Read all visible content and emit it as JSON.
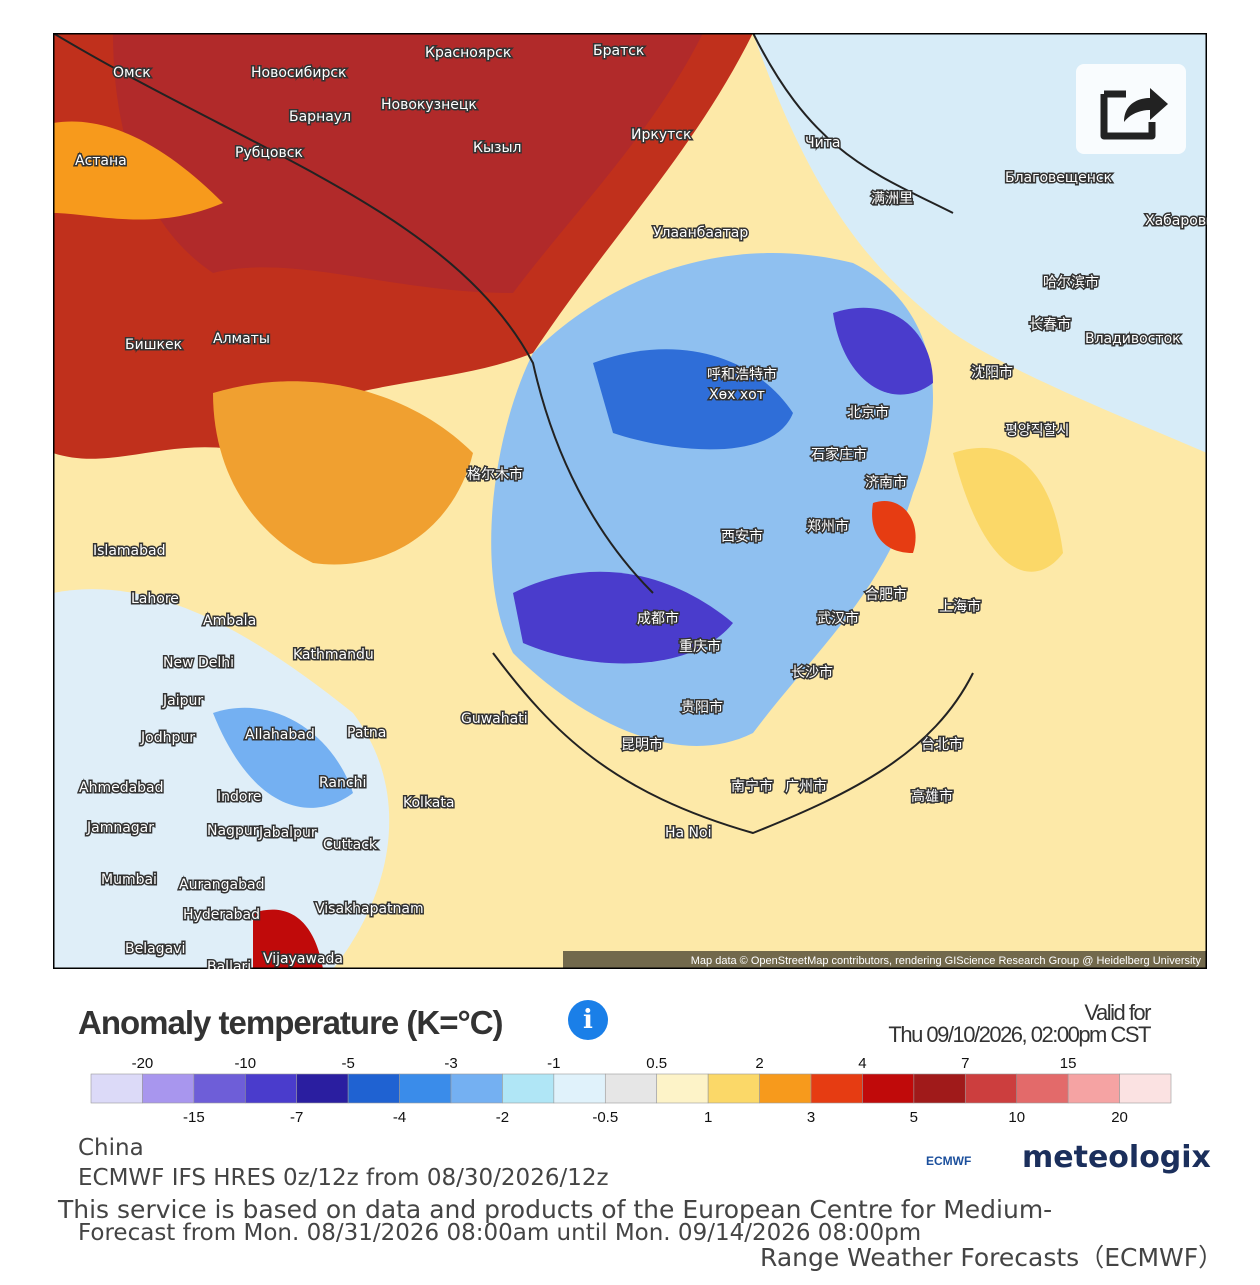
{
  "map": {
    "attribution": "Map data © OpenStreetMap contributors, rendering GIScience Research Group @ Heidelberg University",
    "labels": [
      "Омск",
      "Новосибирск",
      "Красноярск",
      "Братск",
      "Барнаул",
      "Новокузнецк",
      "Астана",
      "Рубцовск",
      "Кызыл",
      "Иркутск",
      "Чита",
      "Улаанбаатар",
      "Благовещенск",
      "Хабаровск",
      "Бишкек",
      "Алматы",
      "Владивосток",
      "Islamabad",
      "Lahore",
      "Ambala",
      "New Delhi",
      "Kathmandu",
      "Jaipur",
      "Jodhpur",
      "Allahabad",
      "Patna",
      "Guwahati",
      "Ranchi",
      "Kolkata",
      "Ahmedabad",
      "Indore",
      "Jabalpur",
      "Nagpur",
      "Jamnagar",
      "Cuttack",
      "Mumbai",
      "Aurangabad",
      "Hyderabad",
      "Visakhapatnam",
      "Belagavi",
      "Ballari",
      "Vijayawada",
      "Ha Noi",
      "满洲里",
      "哈尔滨市",
      "长春市",
      "沈阳市",
      "呼和浩特市",
      "Хөх хот",
      "北京市",
      "石家庄市",
      "济南市",
      "郑州市",
      "西安市",
      "格尔木市",
      "成都市",
      "重庆市",
      "武汉市",
      "合肥市",
      "上海市",
      "长沙市",
      "贵阳市",
      "昆明市",
      "南宁市",
      "广州市",
      "台北市",
      "高雄市",
      "평양직할시"
    ]
  },
  "title": "Anomaly temperature (K=°C)",
  "valid_for": [
    "Valid for",
    "Thu 09/10/2026, 02:00pm CST"
  ],
  "legend": {
    "bounds": [
      -20,
      -15,
      -10,
      -7,
      -5,
      -4,
      -3,
      -2,
      -1,
      -0.5,
      0.5,
      1,
      2,
      3,
      4,
      5,
      7,
      10,
      15,
      20
    ],
    "colors": [
      "#dcdaf8",
      "#a896ee",
      "#6e5ed8",
      "#4a3ccc",
      "#2a1ea0",
      "#1f62d2",
      "#3a8cea",
      "#74b0f2",
      "#b0e6f6",
      "#e0f2fb",
      "#e6e6e6",
      "#fdf3c8",
      "#fbd868",
      "#f79a1c",
      "#e63c12",
      "#c00a0a",
      "#a01a1a",
      "#cc3e3e",
      "#e36a6a",
      "#f5a3a3",
      "#fbe2e2"
    ]
  },
  "footer": {
    "region": "China",
    "model": "ECMWF IFS HRES 0z/12z from 08/30/2026/12z",
    "disclaimer": [
      "This service is based on data and products of the European Centre for Medium-",
      "Range Weather Forecasts（ECMWF）"
    ],
    "range": "Forecast from Mon. 08/31/2026 08:00am until Mon. 09/14/2026 08:00pm"
  },
  "logos": [
    "ECMWF",
    "meteologix"
  ]
}
